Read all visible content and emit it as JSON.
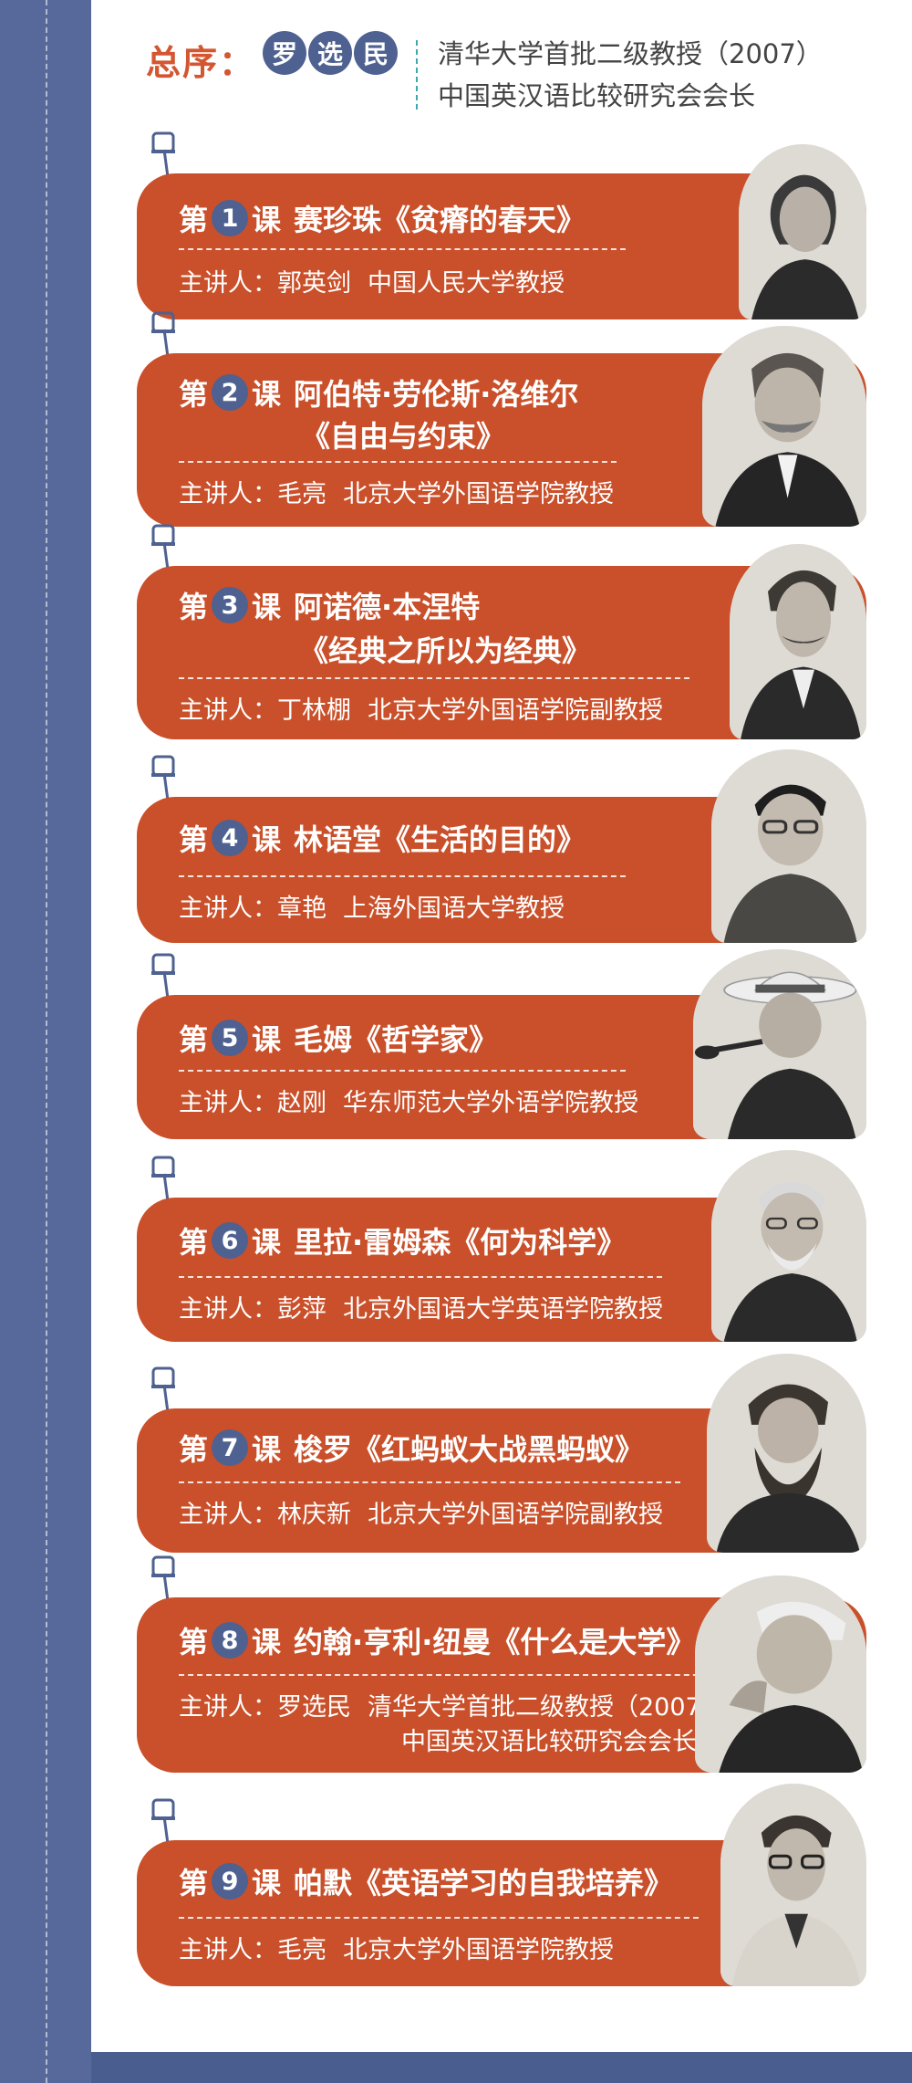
{
  "header": {
    "label": "总序：",
    "name_chars": [
      "罗",
      "选",
      "民"
    ],
    "title_line1": "清华大学首批二级教授（2007）",
    "title_line2": "中国英汉语比较研究会会长"
  },
  "lessons": [
    {
      "prefix": "第",
      "number": "1",
      "suffix": "课",
      "title": "赛珍珠《贫瘠的春天》",
      "title_line2": "",
      "lecturer_prefix": "主讲人：",
      "lecturer_name": "郭英剑",
      "lecturer_title": "中国人民大学教授",
      "lecturer_title2": ""
    },
    {
      "prefix": "第",
      "number": "2",
      "suffix": "课",
      "title": "阿伯特·劳伦斯·洛维尔",
      "title_line2": "《自由与约束》",
      "lecturer_prefix": "主讲人：",
      "lecturer_name": "毛亮",
      "lecturer_title": "北京大学外国语学院教授",
      "lecturer_title2": ""
    },
    {
      "prefix": "第",
      "number": "3",
      "suffix": "课",
      "title": "阿诺德·本涅特",
      "title_line2": "《经典之所以为经典》",
      "lecturer_prefix": "主讲人：",
      "lecturer_name": "丁林棚",
      "lecturer_title": "北京大学外国语学院副教授",
      "lecturer_title2": ""
    },
    {
      "prefix": "第",
      "number": "4",
      "suffix": "课",
      "title": "林语堂《生活的目的》",
      "title_line2": "",
      "lecturer_prefix": "主讲人：",
      "lecturer_name": "章艳",
      "lecturer_title": "上海外国语大学教授",
      "lecturer_title2": ""
    },
    {
      "prefix": "第",
      "number": "5",
      "suffix": "课",
      "title": "毛姆《哲学家》",
      "title_line2": "",
      "lecturer_prefix": "主讲人：",
      "lecturer_name": "赵刚",
      "lecturer_title": "华东师范大学外语学院教授",
      "lecturer_title2": ""
    },
    {
      "prefix": "第",
      "number": "6",
      "suffix": "课",
      "title": "里拉·雷姆森《何为科学》",
      "title_line2": "",
      "lecturer_prefix": "主讲人：",
      "lecturer_name": "彭萍",
      "lecturer_title": "北京外国语大学英语学院教授",
      "lecturer_title2": ""
    },
    {
      "prefix": "第",
      "number": "7",
      "suffix": "课",
      "title": "梭罗《红蚂蚁大战黑蚂蚁》",
      "title_line2": "",
      "lecturer_prefix": "主讲人：",
      "lecturer_name": "林庆新",
      "lecturer_title": "北京大学外国语学院副教授",
      "lecturer_title2": ""
    },
    {
      "prefix": "第",
      "number": "8",
      "suffix": "课",
      "title": "约翰·亨利·纽曼《什么是大学》",
      "title_line2": "",
      "lecturer_prefix": "主讲人：",
      "lecturer_name": "罗选民",
      "lecturer_title": "清华大学首批二级教授（2007）",
      "lecturer_title2": "中国英汉语比较研究会会长"
    },
    {
      "prefix": "第",
      "number": "9",
      "suffix": "课",
      "title": "帕默《英语学习的自我培养》",
      "title_line2": "",
      "lecturer_prefix": "主讲人：",
      "lecturer_name": "毛亮",
      "lecturer_title": "北京大学外国语学院教授",
      "lecturer_title2": ""
    }
  ],
  "colors": {
    "sidebar": "#56699a",
    "card": "#c9502a",
    "number_circle": "#4e6190",
    "header_label": "#d35631",
    "divider": "#3ea7b2"
  }
}
